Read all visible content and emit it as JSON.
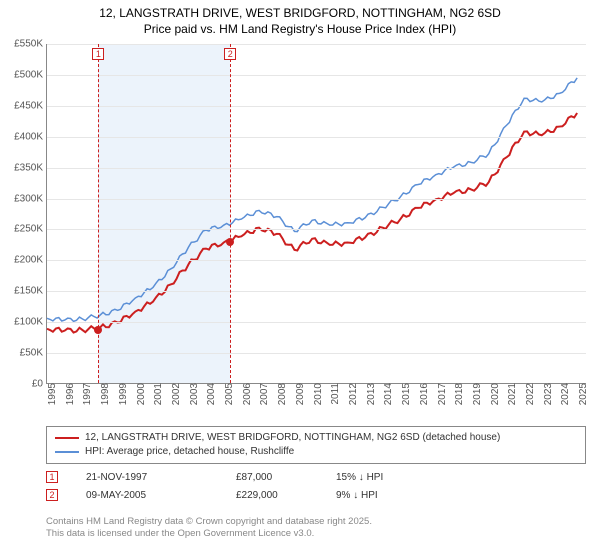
{
  "title": {
    "line1": "12, LANGSTRATH DRIVE, WEST BRIDGFORD, NOTTINGHAM, NG2 6SD",
    "line2": "Price paid vs. HM Land Registry's House Price Index (HPI)",
    "fontsize": 12,
    "color": "#000000"
  },
  "chart": {
    "type": "line",
    "background_color": "#ffffff",
    "grid_color": "#e6e6e6",
    "axis_color": "#888888",
    "shaded_band_color": "#eaf2fb",
    "shaded_band": {
      "x_start": 1997.9,
      "x_end": 2005.35
    },
    "xlim": [
      1995,
      2025.5
    ],
    "ylim": [
      0,
      550000
    ],
    "ytick_step": 50000,
    "yticks": [
      "£0",
      "£50K",
      "£100K",
      "£150K",
      "£200K",
      "£250K",
      "£300K",
      "£350K",
      "£400K",
      "£450K",
      "£500K",
      "£550K"
    ],
    "xticks": [
      1995,
      1996,
      1997,
      1998,
      1999,
      2000,
      2001,
      2002,
      2003,
      2004,
      2005,
      2006,
      2007,
      2008,
      2009,
      2010,
      2011,
      2012,
      2013,
      2014,
      2015,
      2016,
      2017,
      2018,
      2019,
      2020,
      2021,
      2022,
      2023,
      2024,
      2025
    ],
    "tick_fontsize": 10,
    "tick_color": "#555555",
    "series": [
      {
        "name": "hpi",
        "label": "HPI: Average price, detached house, Rushcliffe",
        "color": "#5b8fd6",
        "line_width": 1.5,
        "points": [
          [
            1995,
            105000
          ],
          [
            1996,
            102000
          ],
          [
            1997,
            104000
          ],
          [
            1998,
            110000
          ],
          [
            1999,
            118000
          ],
          [
            2000,
            138000
          ],
          [
            2001,
            155000
          ],
          [
            2002,
            185000
          ],
          [
            2003,
            220000
          ],
          [
            2004,
            248000
          ],
          [
            2005,
            256000
          ],
          [
            2006,
            266000
          ],
          [
            2007,
            280000
          ],
          [
            2008,
            270000
          ],
          [
            2009,
            246000
          ],
          [
            2010,
            264000
          ],
          [
            2011,
            256000
          ],
          [
            2012,
            260000
          ],
          [
            2013,
            268000
          ],
          [
            2014,
            285000
          ],
          [
            2015,
            302000
          ],
          [
            2016,
            322000
          ],
          [
            2017,
            338000
          ],
          [
            2018,
            350000
          ],
          [
            2019,
            358000
          ],
          [
            2020,
            372000
          ],
          [
            2021,
            418000
          ],
          [
            2022,
            462000
          ],
          [
            2023,
            456000
          ],
          [
            2024,
            470000
          ],
          [
            2025,
            495000
          ]
        ]
      },
      {
        "name": "property",
        "label": "12, LANGSTRATH DRIVE, WEST BRIDGFORD, NOTTINGHAM, NG2 6SD (detached house)",
        "color": "#cc1f1f",
        "line_width": 2,
        "points": [
          [
            1995,
            88000
          ],
          [
            1996,
            85000
          ],
          [
            1997,
            86000
          ],
          [
            1998,
            90000
          ],
          [
            1999,
            98000
          ],
          [
            2000,
            116000
          ],
          [
            2001,
            132000
          ],
          [
            2002,
            160000
          ],
          [
            2003,
            192000
          ],
          [
            2004,
            218000
          ],
          [
            2005,
            228000
          ],
          [
            2006,
            238000
          ],
          [
            2007,
            252000
          ],
          [
            2008,
            242000
          ],
          [
            2009,
            216000
          ],
          [
            2010,
            234000
          ],
          [
            2011,
            224000
          ],
          [
            2012,
            228000
          ],
          [
            2013,
            236000
          ],
          [
            2014,
            252000
          ],
          [
            2015,
            266000
          ],
          [
            2016,
            284000
          ],
          [
            2017,
            298000
          ],
          [
            2018,
            308000
          ],
          [
            2019,
            314000
          ],
          [
            2020,
            326000
          ],
          [
            2021,
            366000
          ],
          [
            2022,
            408000
          ],
          [
            2023,
            402000
          ],
          [
            2024,
            416000
          ],
          [
            2025,
            438000
          ]
        ]
      }
    ],
    "sale_markers": [
      {
        "n": "1",
        "x": 1997.9,
        "y": 87000,
        "color": "#cc1f1f"
      },
      {
        "n": "2",
        "x": 2005.35,
        "y": 229000,
        "color": "#cc1f1f"
      }
    ]
  },
  "legend": {
    "border_color": "#888888",
    "fontsize": 10
  },
  "sales_table": {
    "rows": [
      {
        "n": "1",
        "date": "21-NOV-1997",
        "price": "£87,000",
        "delta": "15% ↓ HPI"
      },
      {
        "n": "2",
        "date": "09-MAY-2005",
        "price": "£229,000",
        "delta": "9% ↓ HPI"
      }
    ],
    "badge_color": "#cc1f1f",
    "fontsize": 10
  },
  "attribution": {
    "line1": "Contains HM Land Registry data © Crown copyright and database right 2025.",
    "line2": "This data is licensed under the Open Government Licence v3.0.",
    "color": "#888888",
    "fontsize": 9.5
  }
}
